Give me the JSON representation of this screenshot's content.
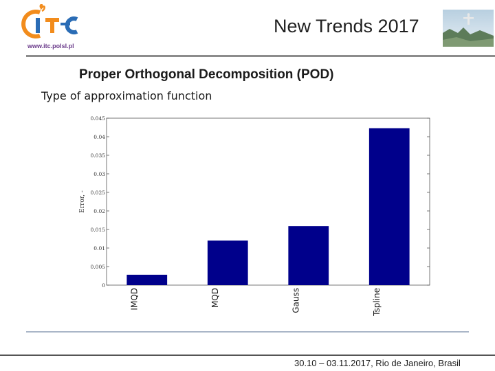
{
  "header": {
    "logo_text": "ITC",
    "logo_url": "www.itc.polsl.pl",
    "event_title": "New Trends 2017"
  },
  "slide": {
    "title": "Proper Orthogonal Decomposition (POD)",
    "subtitle": "Type of approximation function"
  },
  "chart_data": {
    "type": "bar",
    "categories": [
      "IMQD",
      "MQD",
      "Gauss",
      "Tspline"
    ],
    "values": [
      0.0028,
      0.012,
      0.0159,
      0.0423
    ],
    "ylabel": "Error, -",
    "xlabel": "",
    "ylim": [
      0,
      0.045
    ],
    "yticks": [
      "0",
      "0.005",
      "0.01",
      "0.015",
      "0.02",
      "0.025",
      "0.03",
      "0.035",
      "0.04",
      "0.045"
    ],
    "bar_color": "#00008b",
    "grid": false
  },
  "footer": {
    "text": "30.10 – 03.11.2017, Rio de Janeiro, Brasil"
  },
  "colors": {
    "logo_orange": "#f28c1c",
    "logo_blue": "#2a6cb5",
    "logo_url": "#6a3a8a"
  }
}
